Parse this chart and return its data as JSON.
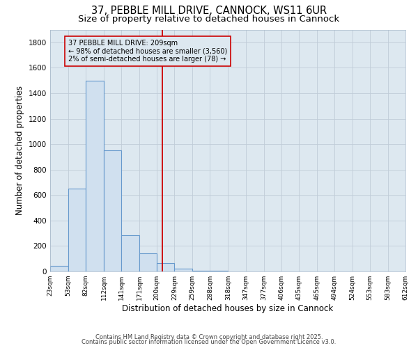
{
  "title1": "37, PEBBLE MILL DRIVE, CANNOCK, WS11 6UR",
  "title2": "Size of property relative to detached houses in Cannock",
  "xlabel": "Distribution of detached houses by size in Cannock",
  "ylabel": "Number of detached properties",
  "bar_edges": [
    23,
    53,
    82,
    112,
    141,
    171,
    200,
    229,
    259,
    288,
    318,
    347,
    377,
    406,
    435,
    465,
    494,
    524,
    553,
    583,
    612
  ],
  "bar_heights": [
    45,
    650,
    1500,
    950,
    285,
    140,
    65,
    20,
    8,
    4,
    2,
    1,
    1,
    0,
    0,
    0,
    0,
    0,
    0,
    0
  ],
  "bar_color": "#d0e0ef",
  "bar_edgecolor": "#6699cc",
  "bar_linewidth": 0.8,
  "vline_x": 209,
  "vline_color": "#cc0000",
  "vline_linewidth": 1.3,
  "annotation_text": "37 PEBBLE MILL DRIVE: 209sqm\n← 98% of detached houses are smaller (3,560)\n2% of semi-detached houses are larger (78) →",
  "annotation_box_edgecolor": "#cc0000",
  "grid_color": "#c0ccd8",
  "background_color": "#ffffff",
  "plot_background": "#dde8f0",
  "ylim": [
    0,
    1900
  ],
  "xlim": [
    23,
    612
  ],
  "tick_labels": [
    "23sqm",
    "53sqm",
    "82sqm",
    "112sqm",
    "141sqm",
    "171sqm",
    "200sqm",
    "229sqm",
    "259sqm",
    "288sqm",
    "318sqm",
    "347sqm",
    "377sqm",
    "406sqm",
    "435sqm",
    "465sqm",
    "494sqm",
    "524sqm",
    "553sqm",
    "583sqm",
    "612sqm"
  ],
  "tick_positions": [
    23,
    53,
    82,
    112,
    141,
    171,
    200,
    229,
    259,
    288,
    318,
    347,
    377,
    406,
    435,
    465,
    494,
    524,
    553,
    583,
    612
  ],
  "footer1": "Contains HM Land Registry data © Crown copyright and database right 2025.",
  "footer2": "Contains public sector information licensed under the Open Government Licence v3.0.",
  "title_fontsize": 10.5,
  "subtitle_fontsize": 9.5,
  "axis_label_fontsize": 8.5,
  "tick_fontsize": 6.5,
  "footer_fontsize": 6,
  "annotation_fontsize": 7
}
